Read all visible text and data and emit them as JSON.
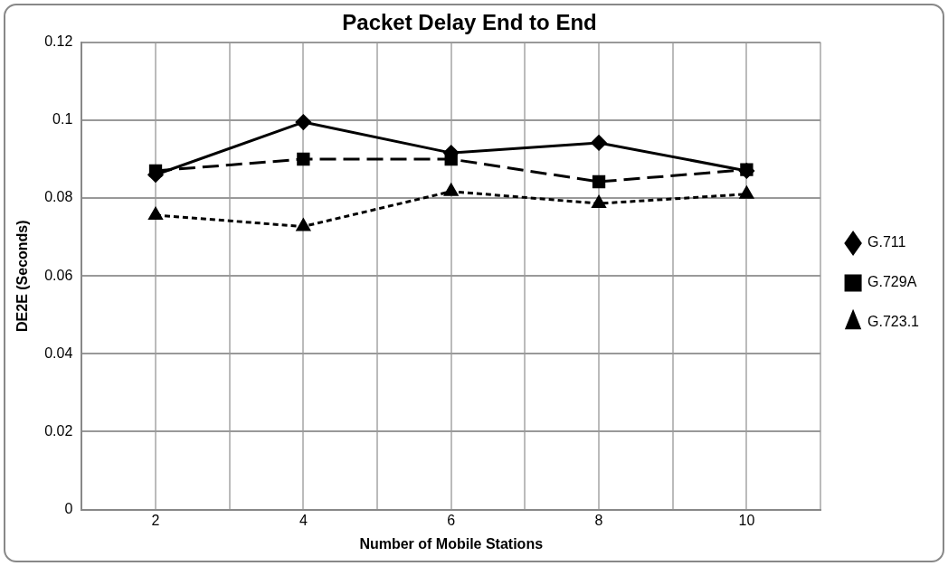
{
  "chart_data": {
    "type": "line",
    "title": "Packet Delay End to End",
    "xlabel": "Number of Mobile Stations",
    "ylabel": "DE2E (Seconds)",
    "x": [
      2,
      4,
      6,
      8,
      10
    ],
    "xlim": [
      1,
      11
    ],
    "xticks": [
      {
        "value": 1,
        "label": null
      },
      2,
      {
        "value": 3,
        "label": null
      },
      4,
      {
        "value": 5,
        "label": null
      },
      6,
      {
        "value": 7,
        "label": null
      },
      8,
      {
        "value": 9,
        "label": null
      },
      10,
      {
        "value": 11,
        "label": null
      }
    ],
    "ylim": [
      0,
      0.12
    ],
    "yticks": [
      0,
      0.02,
      0.04,
      0.06,
      0.08,
      0.1,
      0.12
    ],
    "grid": true,
    "legend": "right",
    "series": [
      {
        "name": "G.711",
        "color": "#000000",
        "marker": "diamond",
        "line_style": "solid",
        "values": [
          0.086,
          0.0995,
          0.0916,
          0.0942,
          0.087
        ]
      },
      {
        "name": "G.729A",
        "color": "#000000",
        "marker": "square",
        "line_style": "dashed",
        "values": [
          0.087,
          0.09,
          0.09,
          0.0842,
          0.0873
        ]
      },
      {
        "name": "G.723.1",
        "color": "#000000",
        "marker": "triangle",
        "line_style": "dotted",
        "values": [
          0.0756,
          0.0727,
          0.0817,
          0.0786,
          0.081
        ]
      }
    ]
  }
}
